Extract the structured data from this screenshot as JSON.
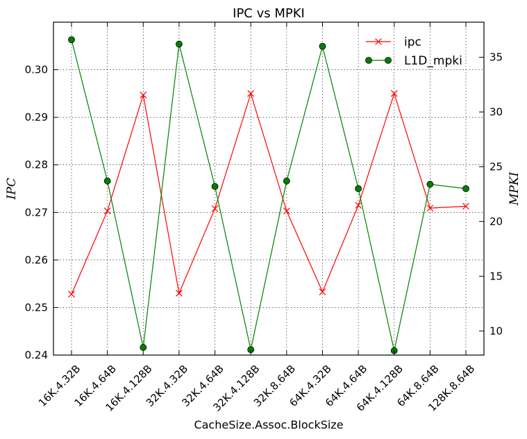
{
  "chart_data": {
    "type": "line",
    "title": "IPC vs MPKI",
    "xlabel": "CacheSize.Assoc.BlockSize",
    "ylabel_left": "IPC",
    "ylabel_right": "MPKI",
    "categories": [
      "16K.4.32B",
      "16K.4.64B",
      "16K.4.128B",
      "32K.4.32B",
      "32K.4.64B",
      "32K.4.128B",
      "32K.8.64B",
      "64K.4.32B",
      "64K.4.64B",
      "64K.4.128B",
      "64K.8.64B",
      "128K.8.64B"
    ],
    "ylim_left": [
      0.24,
      0.31
    ],
    "ylim_right": [
      7.8,
      38.2
    ],
    "yticks_left": [
      "0.24",
      "0.25",
      "0.26",
      "0.27",
      "0.28",
      "0.29",
      "0.30"
    ],
    "yticks_right": [
      "10",
      "15",
      "20",
      "25",
      "30",
      "35"
    ],
    "grid": true,
    "legend_position": "top-right",
    "series": [
      {
        "name": "ipc",
        "axis": "left",
        "color": "#ff0000",
        "marker": "x",
        "values": [
          0.2528,
          0.2703,
          0.2947,
          0.253,
          0.2708,
          0.295,
          0.2703,
          0.2533,
          0.2715,
          0.295,
          0.2709,
          0.2713
        ]
      },
      {
        "name": "L1D_mpki",
        "axis": "right",
        "color": "#008000",
        "marker": "o",
        "values": [
          36.6,
          23.7,
          8.5,
          36.2,
          23.2,
          8.3,
          23.7,
          36.0,
          23.0,
          8.2,
          23.4,
          23.0
        ]
      }
    ]
  }
}
